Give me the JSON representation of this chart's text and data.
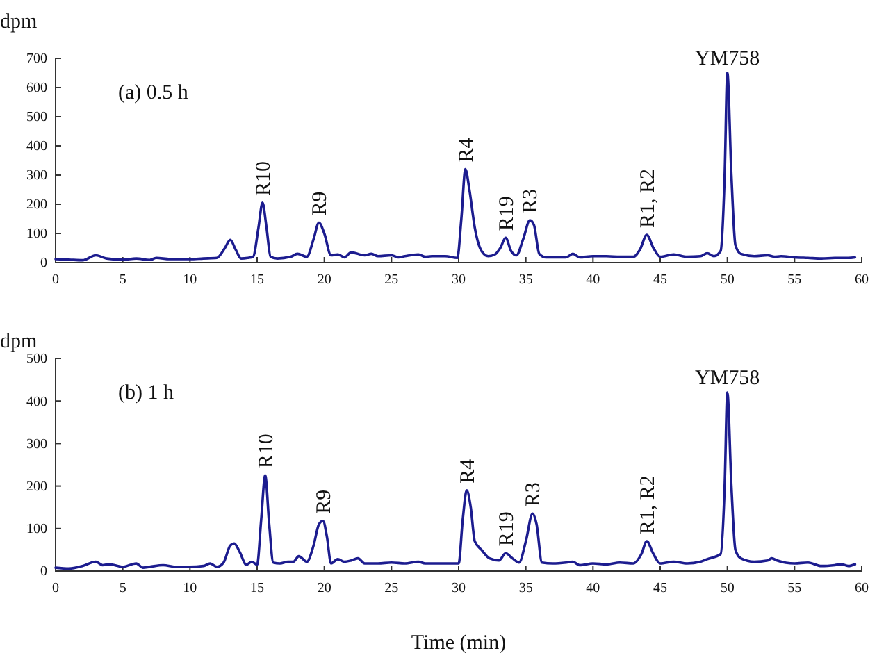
{
  "chart_data": [
    {
      "type": "line",
      "title": "(a) 0.5 h",
      "ylabel": "dpm",
      "xlim": [
        0,
        60
      ],
      "xticks": [
        0,
        5,
        10,
        15,
        20,
        25,
        30,
        35,
        40,
        45,
        50,
        55,
        60
      ],
      "ylim": [
        0,
        700
      ],
      "yticks": [
        0,
        100,
        200,
        300,
        400,
        500,
        600,
        700
      ],
      "series": [
        {
          "color": "#1c1c8f",
          "x": [
            0,
            1,
            2,
            3,
            3.8,
            5,
            6,
            7,
            7.5,
            8.5,
            10,
            11,
            12,
            12.6,
            13,
            13.4,
            13.8,
            14.3,
            14.7,
            15.1,
            15.4,
            15.7,
            16,
            16.5,
            17.5,
            18,
            18.7,
            19.2,
            19.6,
            20,
            20.5,
            21,
            21.5,
            22,
            23,
            23.5,
            24,
            25,
            25.5,
            26,
            27,
            27.5,
            28,
            29,
            29.9,
            30.2,
            30.5,
            30.8,
            31.2,
            31.7,
            32.2,
            32.7,
            33.1,
            33.5,
            33.9,
            34.3,
            34.8,
            35.3,
            35.6,
            36,
            36.5,
            38,
            38.5,
            39,
            40,
            41,
            42,
            43,
            43.5,
            44,
            44.5,
            45,
            46,
            47,
            48,
            48.5,
            49,
            49.5,
            49.8,
            50,
            50.3,
            50.6,
            51,
            52,
            53,
            53.5,
            54,
            55,
            56,
            57,
            58,
            59,
            59.5
          ],
          "values": [
            12,
            10,
            8,
            25,
            14,
            10,
            14,
            9,
            16,
            12,
            12,
            14,
            16,
            50,
            78,
            45,
            14,
            16,
            20,
            120,
            205,
            120,
            20,
            14,
            20,
            30,
            20,
            80,
            137,
            100,
            25,
            28,
            18,
            35,
            25,
            30,
            22,
            25,
            18,
            22,
            28,
            20,
            22,
            22,
            16,
            150,
            320,
            250,
            120,
            40,
            22,
            28,
            50,
            85,
            40,
            25,
            80,
            145,
            130,
            30,
            18,
            18,
            30,
            18,
            22,
            22,
            20,
            20,
            45,
            95,
            50,
            20,
            28,
            20,
            22,
            32,
            22,
            40,
            300,
            650,
            300,
            60,
            30,
            22,
            25,
            20,
            22,
            18,
            16,
            14,
            16,
            16,
            18
          ]
        }
      ],
      "annotations": [
        {
          "text": "R10",
          "x": 15.4,
          "y": 205
        },
        {
          "text": "R9",
          "x": 19.6,
          "y": 137
        },
        {
          "text": "R4",
          "x": 30.5,
          "y": 320
        },
        {
          "text": "R19",
          "x": 33.5,
          "y": 85
        },
        {
          "text": "R3",
          "x": 35.3,
          "y": 145
        },
        {
          "text": "R1, R2",
          "x": 44,
          "y": 95
        },
        {
          "text": "YM758",
          "x": 50,
          "y": 650
        }
      ]
    },
    {
      "type": "line",
      "title": "(b) 1 h",
      "ylabel": "dpm",
      "xlabel": "Time (min)",
      "xlim": [
        0,
        60
      ],
      "xticks": [
        0,
        5,
        10,
        15,
        20,
        25,
        30,
        35,
        40,
        45,
        50,
        55,
        60
      ],
      "ylim": [
        0,
        500
      ],
      "yticks": [
        0,
        100,
        200,
        300,
        400,
        500
      ],
      "series": [
        {
          "color": "#1c1c8f",
          "x": [
            0,
            1,
            2,
            3,
            3.5,
            4,
            5,
            6,
            6.5,
            7,
            8,
            9,
            10,
            11,
            11.5,
            12,
            12.5,
            13,
            13.3,
            13.7,
            14.2,
            14.6,
            15,
            15.3,
            15.6,
            15.9,
            16.2,
            16.7,
            17.3,
            17.7,
            18.1,
            18.7,
            19.2,
            19.6,
            19.9,
            20.2,
            20.5,
            21,
            21.5,
            22,
            22.5,
            23,
            24,
            25,
            26,
            27,
            27.5,
            29,
            30,
            30.3,
            30.6,
            30.9,
            31.2,
            31.7,
            32.3,
            33,
            33.5,
            34,
            34.5,
            35,
            35.5,
            35.8,
            36.2,
            37,
            38,
            38.5,
            39,
            40,
            41,
            42,
            43,
            43.6,
            44,
            44.5,
            45,
            46,
            47,
            48,
            48.5,
            49.5,
            49.8,
            50,
            50.3,
            50.6,
            51,
            52,
            53,
            53.3,
            53.7,
            55,
            56,
            57,
            58,
            58.5,
            59,
            59.5
          ],
          "values": [
            8,
            6,
            12,
            22,
            14,
            16,
            10,
            18,
            8,
            10,
            14,
            10,
            10,
            12,
            18,
            10,
            20,
            60,
            65,
            45,
            15,
            22,
            15,
            120,
            225,
            110,
            20,
            18,
            22,
            22,
            35,
            22,
            60,
            110,
            118,
            80,
            18,
            28,
            22,
            25,
            30,
            18,
            18,
            20,
            18,
            22,
            18,
            18,
            18,
            120,
            190,
            150,
            70,
            50,
            30,
            25,
            42,
            30,
            20,
            70,
            135,
            110,
            20,
            18,
            20,
            22,
            14,
            18,
            16,
            20,
            18,
            40,
            70,
            40,
            18,
            22,
            18,
            22,
            28,
            40,
            200,
            420,
            200,
            50,
            30,
            22,
            25,
            30,
            25,
            18,
            20,
            12,
            14,
            16,
            12,
            16
          ]
        }
      ],
      "annotations": [
        {
          "text": "R10",
          "x": 15.6,
          "y": 225
        },
        {
          "text": "R9",
          "x": 19.9,
          "y": 118
        },
        {
          "text": "R4",
          "x": 30.6,
          "y": 190
        },
        {
          "text": "R19",
          "x": 33.5,
          "y": 42
        },
        {
          "text": "R3",
          "x": 35.5,
          "y": 135
        },
        {
          "text": "R1, R2",
          "x": 44,
          "y": 70
        },
        {
          "text": "YM758",
          "x": 50,
          "y": 420
        }
      ]
    }
  ]
}
